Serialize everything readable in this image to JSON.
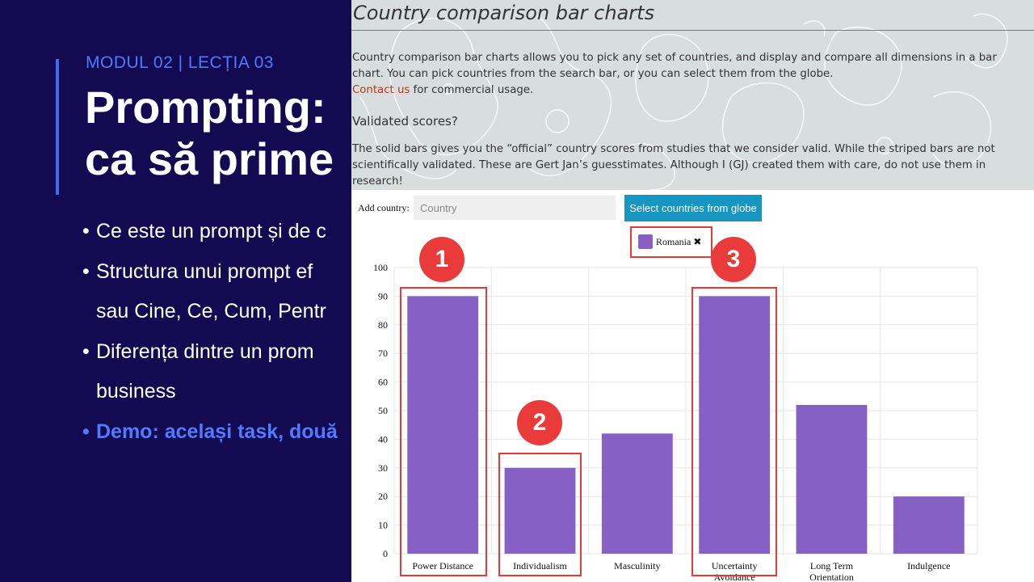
{
  "slide": {
    "module_label": "MODUL 02 | LECȚIA 03",
    "title_line1": "Prompting:",
    "title_line2": "ca să prime",
    "bullets": [
      {
        "text": "Ce este un prompt și de c"
      },
      {
        "text": "Structura unui prompt ef"
      },
      {
        "text": "sau Cine, Ce, Cum, Pentr",
        "continuation": true
      },
      {
        "text": "Diferența dintre un prom"
      },
      {
        "text": "business",
        "continuation": true
      },
      {
        "text": "Demo: același task, două",
        "highlight": true
      }
    ],
    "colors": {
      "background": "#130a52",
      "accent": "#4f7bff",
      "bar": "#3d6cf0"
    }
  },
  "page": {
    "title": "Country comparison bar charts",
    "intro": "Country comparison bar charts allows you to pick any set of countries, and display and compare all dimensions in a bar chart. You can pick countries from the search bar, or you can select them from the globe.",
    "contact_link": "Contact us",
    "contact_suffix": " for commercial usage.",
    "subheading": "Validated scores?",
    "validated_text": "The solid bars gives you the “official” country scores from studies that we consider valid. While the striped bars are not scientifically validated. These are Gert Jan’s guesstimates. Although I (GJ) created them with care, do not use them in research!"
  },
  "controls": {
    "add_label": "Add country:",
    "input_placeholder": "Country",
    "input_value": "",
    "globe_button": "Select countries from globe"
  },
  "legend": {
    "country": "Romania",
    "remove_icon": "✖",
    "color": "#8660c4"
  },
  "annotations": {
    "badges": [
      "1",
      "2",
      "3"
    ],
    "color": "#e8393a"
  },
  "chart_data": {
    "type": "bar",
    "categories": [
      "Power Distance",
      "Individualism",
      "Masculinity",
      "Uncertainty Avoidance",
      "Long Term Orientation",
      "Indulgence"
    ],
    "category_lines": [
      [
        "Power Distance"
      ],
      [
        "Individualism"
      ],
      [
        "Masculinity"
      ],
      [
        "Uncertainty",
        "Avoidance"
      ],
      [
        "Long Term",
        "Orientation"
      ],
      [
        "Indulgence"
      ]
    ],
    "series": [
      {
        "name": "Romania",
        "values": [
          90,
          30,
          42,
          90,
          52,
          20
        ],
        "color": "#8660c4"
      }
    ],
    "ylim": [
      0,
      100
    ],
    "yticks": [
      0,
      10,
      20,
      30,
      40,
      50,
      60,
      70,
      80,
      90,
      100
    ],
    "grid": true,
    "legend_position": "top-center"
  }
}
